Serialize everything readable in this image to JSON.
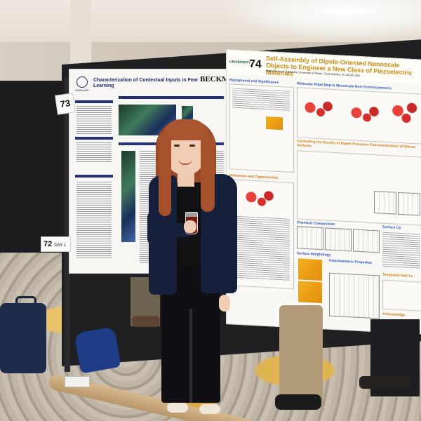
{
  "poster_left": {
    "title": "Characterization of Contextual Inputs in Fear Learning",
    "institution": "BARNARD",
    "logo_text": "BECKMAN"
  },
  "poster_right": {
    "number": "74",
    "university": "UNIVERSITY",
    "title": "Self-Assembly of Dipole-Oriented Nanoscale Objects to Engineer a New Class of Piezoelectric Materials",
    "authors": "Department of Chemistry, University of Miami, Coral Gables, FL 33146 USA",
    "sections": {
      "background": "Background and Significance",
      "roadmap": "Molecular Road Map to Mesoscale Non-Centrosymmetric",
      "controlling": "Controlling the Density of Dipole Precursor Functionalization of Silicon Surfaces",
      "opportunities": "Motivation and Opportunities",
      "chemical": "Chemical Composition",
      "morphology": "Surface Morphology",
      "potentiometric": "Potentiometric Properties",
      "surface": "Surface Co",
      "templated": "Templated Self-As",
      "acknowledgements": "Acknowledge"
    }
  },
  "cards": {
    "card_73": "73",
    "card_72": "72",
    "card_72_suffix": "DAY 1"
  }
}
